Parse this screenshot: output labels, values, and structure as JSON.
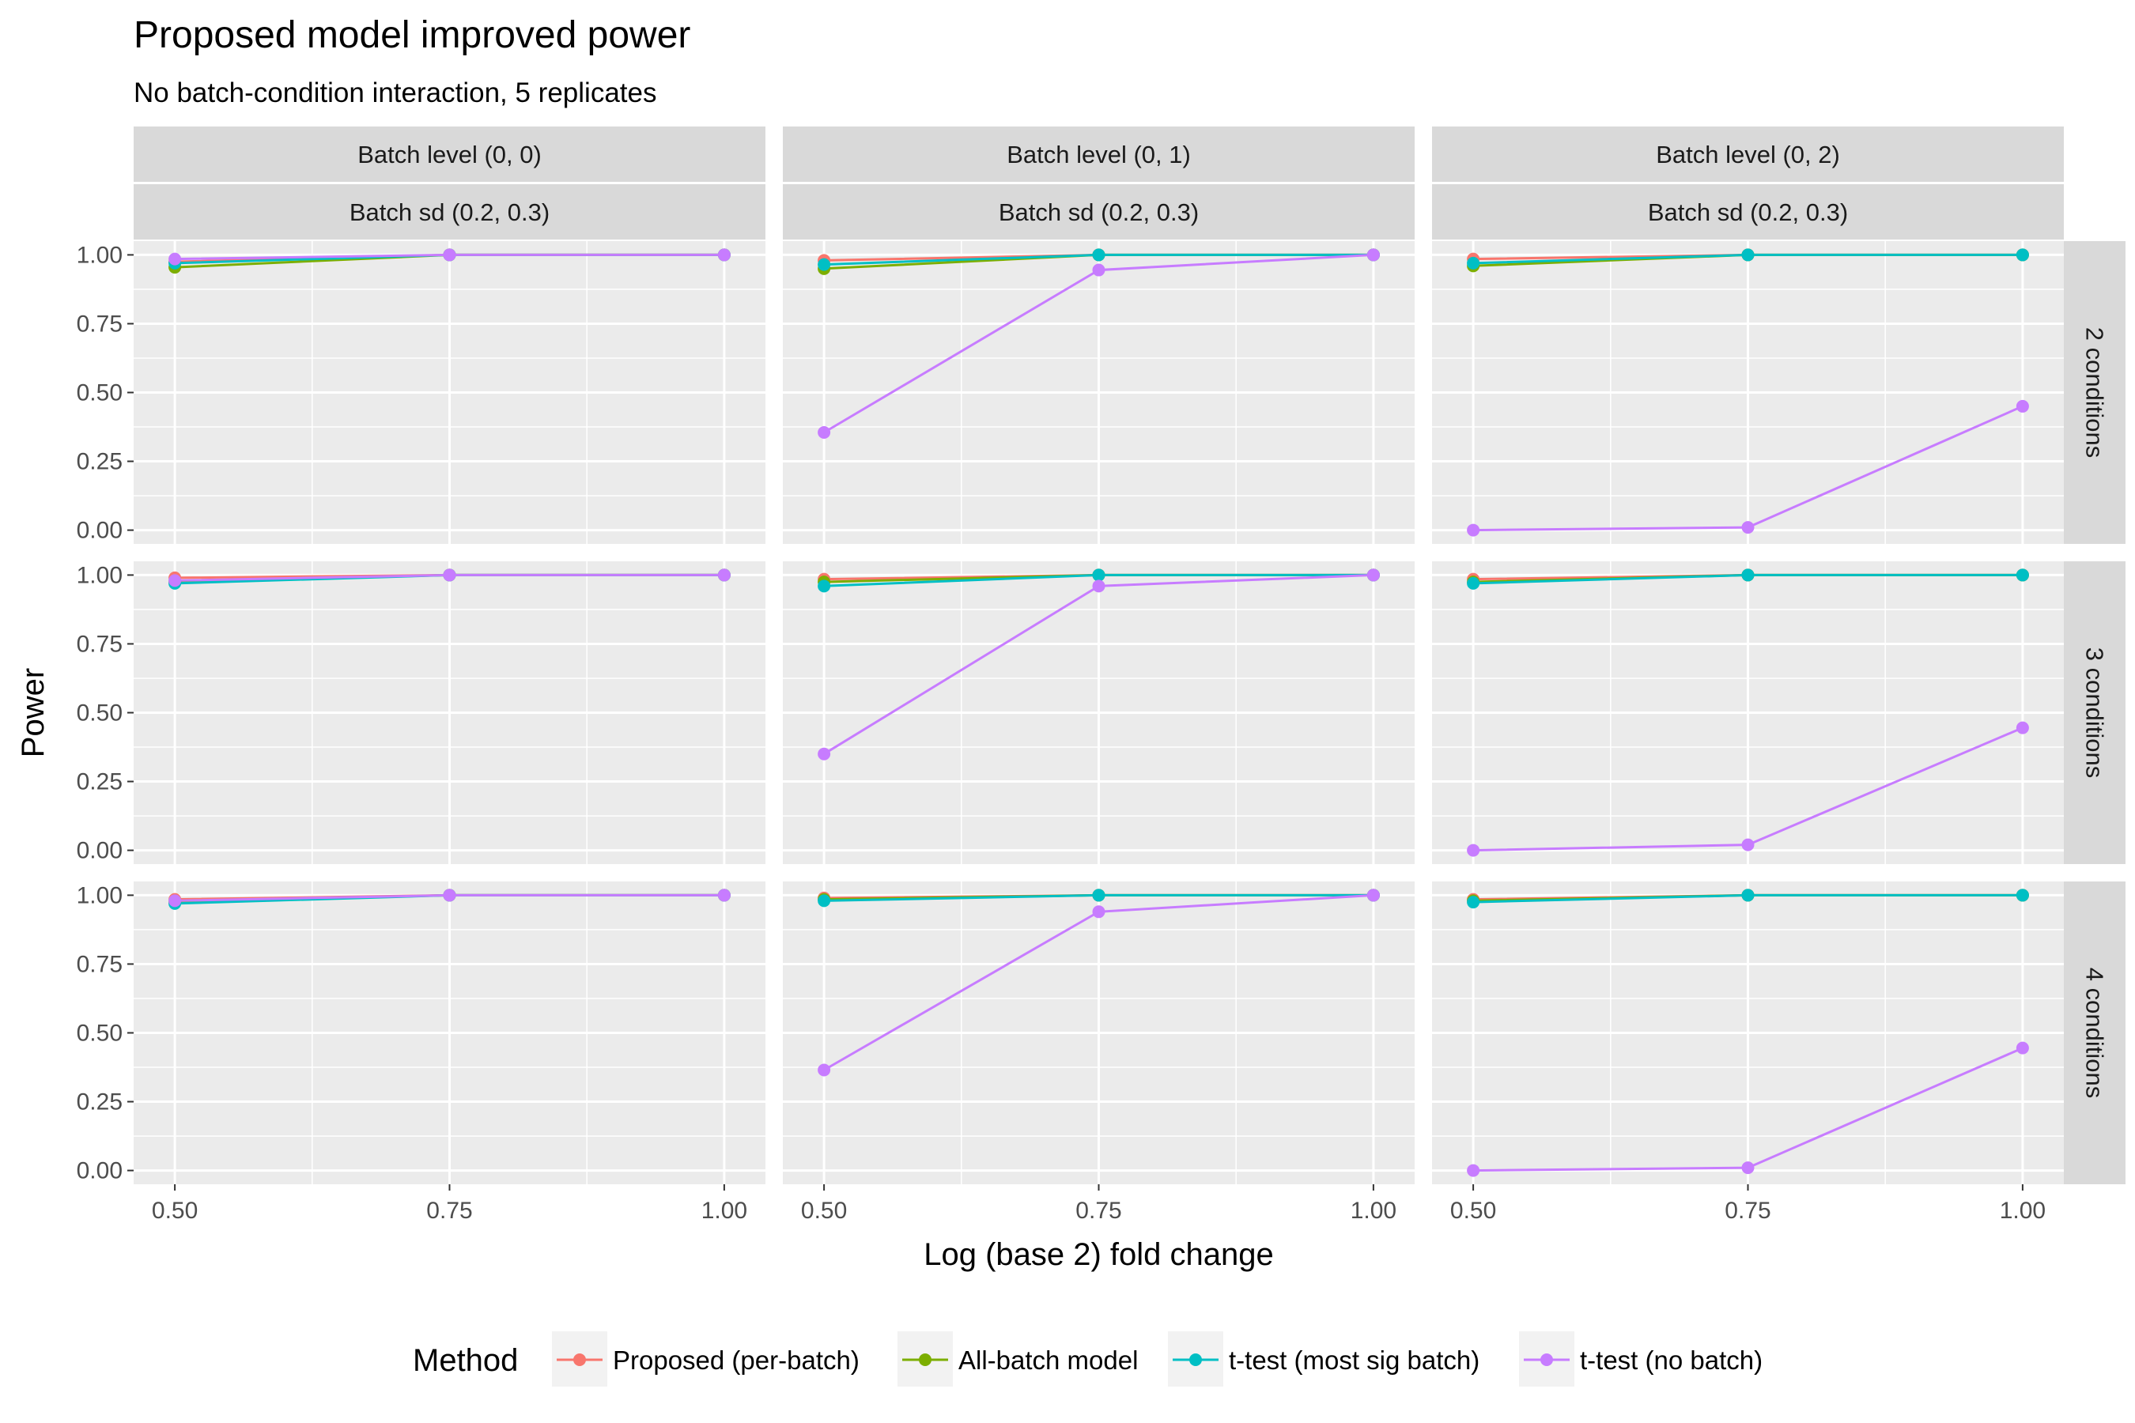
{
  "title": "Proposed model improved power",
  "subtitle": "No batch-condition interaction, 5 replicates",
  "chart_data": {
    "type": "line",
    "title": "Proposed model improved power",
    "subtitle": "No batch-condition interaction, 5 replicates",
    "xlabel": "Log (base 2) fold change",
    "ylabel": "Power",
    "x": [
      0.5,
      0.75,
      1.0
    ],
    "x_ticks": [
      "0.50",
      "0.75",
      "1.00"
    ],
    "y_ticks": [
      "0.00",
      "0.25",
      "0.50",
      "0.75",
      "1.00"
    ],
    "ylim": [
      -0.05,
      1.05
    ],
    "xlim": [
      0.4625,
      1.0375
    ],
    "grid": true,
    "legend": {
      "title": "Method",
      "position": "bottom"
    },
    "column_strips": [
      {
        "line1": "Batch level (0, 0)",
        "line2": "Batch sd (0.2, 0.3)"
      },
      {
        "line1": "Batch level (0, 1)",
        "line2": "Batch sd (0.2, 0.3)"
      },
      {
        "line1": "Batch level (0, 2)",
        "line2": "Batch sd (0.2, 0.3)"
      }
    ],
    "row_strips": [
      "2 conditions",
      "3 conditions",
      "4 conditions"
    ],
    "series": [
      {
        "name": "Proposed (per-batch)",
        "color": "#F8766D"
      },
      {
        "name": "All-batch model",
        "color": "#7CAE00"
      },
      {
        "name": "t-test (most sig batch)",
        "color": "#00BFC4"
      },
      {
        "name": "t-test (no batch)",
        "color": "#C77CFF"
      }
    ],
    "panels": [
      {
        "row": 0,
        "col": 0,
        "series": [
          [
            0.975,
            1.0,
            1.0
          ],
          [
            0.955,
            1.0,
            1.0
          ],
          [
            0.97,
            1.0,
            1.0
          ],
          [
            0.985,
            1.0,
            1.0
          ]
        ]
      },
      {
        "row": 0,
        "col": 1,
        "series": [
          [
            0.98,
            1.0,
            1.0
          ],
          [
            0.95,
            1.0,
            1.0
          ],
          [
            0.965,
            1.0,
            1.0
          ],
          [
            0.355,
            0.945,
            1.0
          ]
        ]
      },
      {
        "row": 0,
        "col": 2,
        "series": [
          [
            0.985,
            1.0,
            1.0
          ],
          [
            0.96,
            1.0,
            1.0
          ],
          [
            0.97,
            1.0,
            1.0
          ],
          [
            0.0,
            0.01,
            0.45
          ]
        ]
      },
      {
        "row": 1,
        "col": 0,
        "series": [
          [
            0.99,
            1.0,
            1.0
          ],
          [
            0.975,
            1.0,
            1.0
          ],
          [
            0.97,
            1.0,
            1.0
          ],
          [
            0.98,
            1.0,
            1.0
          ]
        ]
      },
      {
        "row": 1,
        "col": 1,
        "series": [
          [
            0.985,
            1.0,
            1.0
          ],
          [
            0.975,
            1.0,
            1.0
          ],
          [
            0.96,
            1.0,
            1.0
          ],
          [
            0.35,
            0.96,
            1.0
          ]
        ]
      },
      {
        "row": 1,
        "col": 2,
        "series": [
          [
            0.985,
            1.0,
            1.0
          ],
          [
            0.975,
            1.0,
            1.0
          ],
          [
            0.97,
            1.0,
            1.0
          ],
          [
            0.0,
            0.02,
            0.445
          ]
        ]
      },
      {
        "row": 2,
        "col": 0,
        "series": [
          [
            0.985,
            1.0,
            1.0
          ],
          [
            0.975,
            1.0,
            1.0
          ],
          [
            0.97,
            1.0,
            1.0
          ],
          [
            0.98,
            1.0,
            1.0
          ]
        ]
      },
      {
        "row": 2,
        "col": 1,
        "series": [
          [
            0.99,
            1.0,
            1.0
          ],
          [
            0.985,
            1.0,
            1.0
          ],
          [
            0.98,
            1.0,
            1.0
          ],
          [
            0.365,
            0.94,
            1.0
          ]
        ]
      },
      {
        "row": 2,
        "col": 2,
        "series": [
          [
            0.985,
            1.0,
            1.0
          ],
          [
            0.98,
            1.0,
            1.0
          ],
          [
            0.975,
            1.0,
            1.0
          ],
          [
            0.0,
            0.01,
            0.445
          ]
        ]
      }
    ]
  }
}
